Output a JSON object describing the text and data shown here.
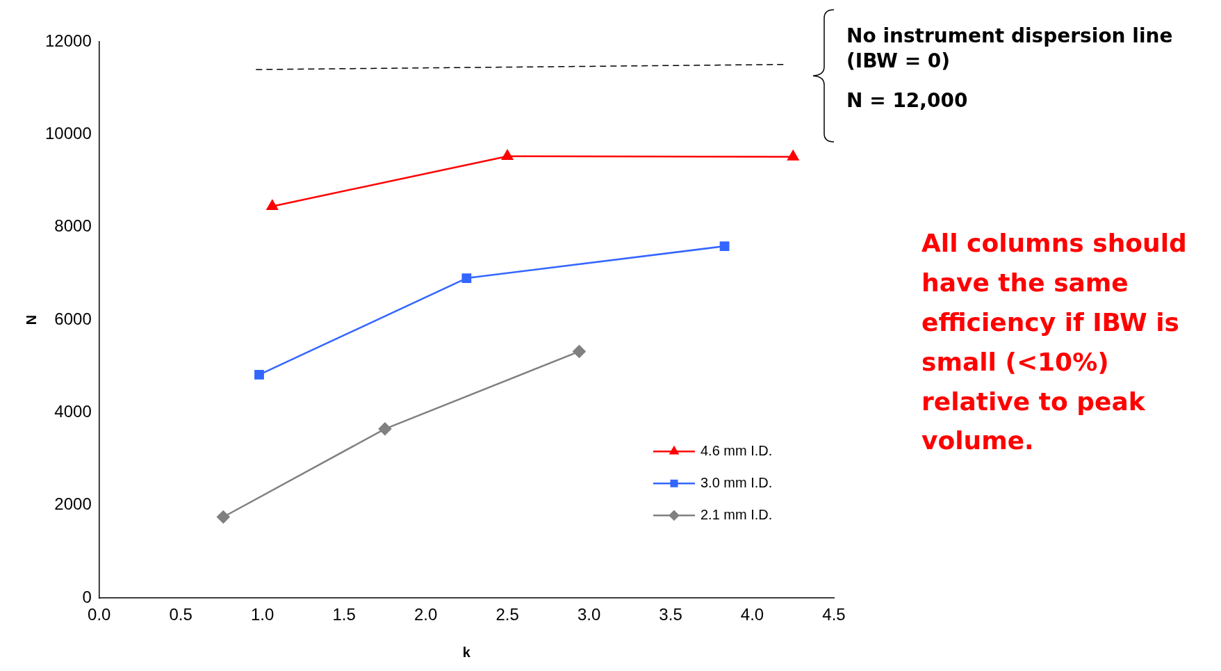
{
  "chart_data": {
    "type": "line",
    "xlabel": "k",
    "ylabel": "N",
    "xlim": [
      0,
      4.5
    ],
    "xticks": [
      {
        "value": 0,
        "label": "0.0"
      },
      0.5,
      {
        "value": 1,
        "label": "1.0"
      },
      1.5,
      {
        "value": 2,
        "label": "2.0"
      },
      2.5,
      {
        "value": 3,
        "label": "3.0"
      },
      3.5,
      {
        "value": 4,
        "label": "4.0"
      },
      4.5
    ],
    "ylim": [
      0,
      12000
    ],
    "yticks": [
      0,
      2000,
      4000,
      6000,
      8000,
      10000,
      12000
    ],
    "grid": false,
    "legend": "bottom right",
    "series": [
      {
        "name": "4.6 mm I.D.",
        "color": "#ff0000",
        "marker": "triangle",
        "x": [
          1.06,
          2.5,
          4.25
        ],
        "values": [
          8450,
          9530,
          9520
        ]
      },
      {
        "name": "3.0 mm I.D.",
        "color": "#3366ff",
        "marker": "square",
        "x": [
          0.98,
          2.25,
          3.83
        ],
        "values": [
          4820,
          6900,
          7590
        ]
      },
      {
        "name": "2.1 mm I.D.",
        "color": "#808080",
        "marker": "diamond",
        "x": [
          0.76,
          1.75,
          2.94
        ],
        "values": [
          1750,
          3650,
          5320
        ]
      },
      {
        "color": "#000000",
        "marker": "none",
        "line_style": "dashed",
        "x": [
          0.96,
          4.2
        ],
        "values": [
          11400,
          11510
        ]
      }
    ],
    "annotations": [
      "No instrument dispersion line (IBW = 0)",
      "N = 12,000",
      "All columns should have the same efficiency if IBW is small (<10%) relative to peak volume."
    ]
  }
}
